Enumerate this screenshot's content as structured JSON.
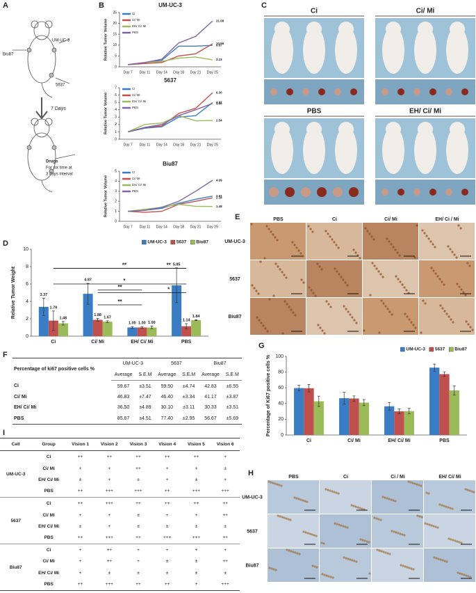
{
  "panel_labels": {
    "A": "A",
    "B": "B",
    "C": "C",
    "D": "D",
    "E": "E",
    "F": "F",
    "G": "G",
    "H": "H",
    "I": "I"
  },
  "diagram": {
    "site_left": "Biu87",
    "site_right": "UM-UC-3",
    "site_bottom": "5637",
    "arrow_label": "7 Days",
    "drugs": "Drugs",
    "schedule_line1": "For six time at",
    "schedule_line2": "3 days interval"
  },
  "photos": {
    "groups": [
      "Ci",
      "Ci/ Mi",
      "PBS",
      "EH/ Ci/ Mi"
    ]
  },
  "histology_e": {
    "columns": [
      "PBS",
      "Ci",
      "Ci/ Mi",
      "EH/ Ci / Mi"
    ],
    "rows": [
      "UM-UC-3",
      "5637",
      "Biu87"
    ]
  },
  "histology_h": {
    "columns": [
      "PBS",
      "Ci",
      "Ci / Mi",
      "EH/ Ci/ Mi"
    ],
    "rows": [
      "UM-UC-3",
      "5637",
      "Biu87"
    ]
  },
  "chart_data": [
    {
      "type": "line",
      "title": "UM-UC-3",
      "ylabel": "Relative Tumor Volume",
      "categories": [
        "Day 7",
        "Day 11",
        "Day 14",
        "Day 18",
        "Day 21",
        "Day 25"
      ],
      "series": [
        {
          "name": "Ci",
          "color": "#3b7dc4",
          "values": [
            1,
            2,
            3,
            9.5,
            9.5,
            9.87
          ]
        },
        {
          "name": "Ci/ Mi",
          "color": "#c0504d",
          "values": [
            1,
            1.5,
            2,
            5,
            6,
            10.59
          ]
        },
        {
          "name": "EH/ Ci/ Mi",
          "color": "#9bbb59",
          "values": [
            1,
            2,
            2.5,
            4,
            4.5,
            3.23
          ]
        },
        {
          "name": "PBS",
          "color": "#8064a2",
          "values": [
            1,
            2,
            3.5,
            11,
            14,
            21.08
          ]
        }
      ],
      "ylim": [
        0,
        25
      ],
      "yticks": [
        0,
        5,
        10,
        15,
        20,
        25
      ],
      "legend": "upper left",
      "end_labels": true
    },
    {
      "type": "line",
      "title": "5637",
      "ylabel": "Relative Tumor Volume",
      "categories": [
        "Day 7",
        "Day 11",
        "Day 14",
        "Day 18",
        "Day 21",
        "Day 25"
      ],
      "series": [
        {
          "name": "Ci",
          "color": "#3b7dc4",
          "values": [
            1,
            1.5,
            1.7,
            3,
            3.2,
            4.97
          ]
        },
        {
          "name": "Ci/ Mi",
          "color": "#c0504d",
          "values": [
            1,
            1.6,
            1.8,
            3.5,
            4.2,
            6.3
          ],
          "value_labels": [
            null,
            null,
            null,
            null,
            null,
            "6.30"
          ]
        },
        {
          "name": "EH/ Ci/ Mi",
          "color": "#9bbb59",
          "values": [
            1,
            2,
            2.2,
            3.2,
            2.5,
            2.54
          ]
        },
        {
          "name": "PBS",
          "color": "#8064a2",
          "values": [
            1,
            1.6,
            2,
            3.2,
            4,
            4.86
          ]
        }
      ],
      "ylim": [
        0,
        7
      ],
      "yticks": [
        0,
        1,
        2,
        3,
        4,
        5,
        6,
        7
      ],
      "legend": "upper left",
      "end_labels": true
    },
    {
      "type": "line",
      "title": "Biu87",
      "ylabel": "Relative Tumor Volume",
      "categories": [
        "Day 7",
        "Day 11",
        "Day 14",
        "Day 18",
        "Day 21",
        "Day 25"
      ],
      "series": [
        {
          "name": "Ci",
          "color": "#3b7dc4",
          "values": [
            1,
            1.1,
            1.3,
            1.8,
            2.2,
            2.51
          ]
        },
        {
          "name": "Ci/ Mi",
          "color": "#c0504d",
          "values": [
            1,
            0.9,
            1,
            1.7,
            2,
            2.34
          ]
        },
        {
          "name": "EH/ Ci/ Mi",
          "color": "#9bbb59",
          "values": [
            1,
            1.2,
            1.4,
            1.7,
            1.5,
            1.48
          ]
        },
        {
          "name": "PBS",
          "color": "#8064a2",
          "values": [
            1,
            1.1,
            1.4,
            2,
            3,
            4.09
          ]
        }
      ],
      "ylim": [
        0,
        5
      ],
      "yticks": [
        0,
        1,
        2,
        3,
        4,
        5
      ],
      "legend": "upper left",
      "end_labels": true
    },
    {
      "type": "bar",
      "ylabel": "Relative Tumor Weight",
      "categories": [
        "Ci",
        "Ci/ Mi",
        "EH/ Ci/ Mi",
        "PBS"
      ],
      "series": [
        {
          "name": "UM-UC-3",
          "color": "#3b7dc4",
          "values": [
            3.37,
            4.87,
            1.0,
            5.85
          ],
          "errors": [
            1.0,
            1.2,
            0.1,
            2.0
          ],
          "value_labels": [
            "3.37",
            "4.87",
            "1.00",
            "5.85"
          ]
        },
        {
          "name": "5637",
          "color": "#c0504d",
          "values": [
            1.79,
            1.88,
            1.0,
            1.14
          ],
          "errors": [
            1.1,
            0.15,
            0.1,
            0.3
          ],
          "value_labels": [
            "1.79",
            "1.88",
            "1.00",
            "1.14"
          ]
        },
        {
          "name": "Biu87",
          "color": "#9bbb59",
          "values": [
            1.48,
            1.67,
            1.0,
            1.84
          ],
          "errors": [
            0.2,
            0.1,
            0.15,
            0.05
          ],
          "value_labels": [
            "1.48",
            "1.67",
            "1.00",
            "1.84"
          ]
        }
      ],
      "ylim": [
        0,
        10
      ],
      "yticks": [
        0,
        2,
        4,
        6,
        8,
        10
      ],
      "legend": "upper right",
      "annotations": [
        "**",
        "**",
        "*",
        "**",
        "*",
        "**"
      ]
    },
    {
      "type": "bar",
      "ylabel": "Percentage of Ki67 positive cells %",
      "categories": [
        "Ci",
        "Ci/ Mi",
        "EH/ Ci/ Mi",
        "PBS"
      ],
      "series": [
        {
          "name": "UM-UC-3",
          "color": "#3b7dc4",
          "values": [
            59.67,
            46.83,
            36.5,
            85.67
          ],
          "errors": [
            3.51,
            7.47,
            4.89,
            4.51
          ]
        },
        {
          "name": "5637",
          "color": "#c0504d",
          "values": [
            59.5,
            46.4,
            30.1,
            77.4
          ],
          "errors": [
            4.74,
            3.34,
            3.11,
            2.95
          ]
        },
        {
          "name": "Biu87",
          "color": "#9bbb59",
          "values": [
            42.83,
            41.17,
            30.33,
            56.67
          ],
          "errors": [
            6.55,
            3.87,
            3.51,
            5.69
          ]
        }
      ],
      "ylim": [
        0,
        100
      ],
      "yticks": [
        0,
        20,
        40,
        60,
        80,
        100
      ],
      "legend": "upper right"
    }
  ],
  "table_f": {
    "corner": "Percentage of ki67 positive cells %",
    "groups": [
      "UM-UC-3",
      "5637",
      "Biu87"
    ],
    "subheaders": [
      "Average",
      "S.E.M"
    ],
    "rows": [
      {
        "label": "Ci",
        "cells": [
          "59.67",
          "±3.51",
          "59.50",
          "±4.74",
          "42.83",
          "±6.55"
        ]
      },
      {
        "label": "Ci/ Mi",
        "cells": [
          "46.83",
          "±7.47",
          "46.40",
          "±3.34",
          "41.17",
          "±3.87"
        ]
      },
      {
        "label": "EH/ Ci/ Mi",
        "cells": [
          "36.50",
          "±4.89",
          "30.10",
          "±3.11",
          "30.33",
          "±3.51"
        ]
      },
      {
        "label": "PBS",
        "cells": [
          "85.67",
          "±4.51",
          "77.40",
          "±2.95",
          "56.67",
          "±5.69"
        ]
      }
    ]
  },
  "table_i": {
    "headers": [
      "Cell",
      "Group",
      "Vision 1",
      "Vision 2",
      "Vision 3",
      "Vision 4",
      "Vision 5",
      "Vision 6"
    ],
    "blocks": [
      {
        "cell": "UM-UC-3",
        "rows": [
          {
            "group": "Ci",
            "values": [
              "++",
              "++",
              "++",
              "++",
              "++",
              "+"
            ]
          },
          {
            "group": "Ci/ Mi",
            "values": [
              "+",
              "+",
              "++",
              "+",
              "+",
              "±"
            ]
          },
          {
            "group": "EH/ Ci/ Mi",
            "values": [
              "±",
              "+",
              "±",
              "+",
              "±",
              "+"
            ]
          },
          {
            "group": "PBS",
            "values": [
              "++",
              "+++",
              "+++",
              "++",
              "+++",
              "+++"
            ]
          }
        ]
      },
      {
        "cell": "5637",
        "rows": [
          {
            "group": "Ci",
            "values": [
              "++",
              "+++",
              "++",
              "++",
              "++",
              "++"
            ]
          },
          {
            "group": "Ci/ Mi",
            "values": [
              "+",
              "+",
              "±",
              "+",
              "+",
              "++"
            ]
          },
          {
            "group": "EH/ Ci/ Mi",
            "values": [
              "±",
              "+",
              "±",
              "±",
              "±",
              "±"
            ]
          },
          {
            "group": "PBS",
            "values": [
              "++",
              "+++",
              "++",
              "+++",
              "+++",
              "++"
            ]
          }
        ]
      },
      {
        "cell": "Biu87",
        "rows": [
          {
            "group": "Ci",
            "values": [
              "+",
              "++",
              "+",
              "+",
              "+",
              "+"
            ]
          },
          {
            "group": "Ci/ Mi",
            "values": [
              "+",
              "++",
              "+",
              "±",
              "±",
              "++"
            ]
          },
          {
            "group": "EH/ Ci/ Mi",
            "values": [
              "+",
              "±",
              "±",
              "±",
              "±",
              "±"
            ]
          },
          {
            "group": "PBS",
            "values": [
              "++",
              "+++",
              "++",
              "++",
              "+",
              "+++"
            ]
          }
        ]
      }
    ]
  }
}
